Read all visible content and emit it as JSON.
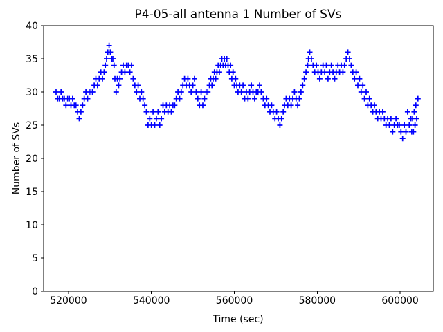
{
  "figure": {
    "background": "#ffffff"
  },
  "chart_data": {
    "type": "scatter",
    "title": "P4-05-all antenna 1 Number of SVs",
    "xlabel": "Time (sec)",
    "ylabel": "Number of SVs",
    "xlim": [
      514000,
      608000
    ],
    "ylim": [
      0,
      40
    ],
    "xticks": [
      520000,
      540000,
      560000,
      580000,
      600000
    ],
    "yticks": [
      0,
      5,
      10,
      15,
      20,
      25,
      30,
      35,
      40
    ],
    "grid": false,
    "marker": "plus",
    "marker_color": "#0000ff",
    "axis_color": "#000000",
    "points": [
      [
        517000,
        30
      ],
      [
        517400,
        29
      ],
      [
        517800,
        29
      ],
      [
        518200,
        30
      ],
      [
        518600,
        29
      ],
      [
        519000,
        29
      ],
      [
        519400,
        28
      ],
      [
        519800,
        29
      ],
      [
        520200,
        29
      ],
      [
        520600,
        28
      ],
      [
        521000,
        29
      ],
      [
        521400,
        28
      ],
      [
        521800,
        28
      ],
      [
        522200,
        27
      ],
      [
        522600,
        26
      ],
      [
        523000,
        27
      ],
      [
        523400,
        28
      ],
      [
        523800,
        29
      ],
      [
        524200,
        30
      ],
      [
        524600,
        29
      ],
      [
        525000,
        30
      ],
      [
        525400,
        30
      ],
      [
        525800,
        30
      ],
      [
        526200,
        31
      ],
      [
        526600,
        32
      ],
      [
        527000,
        31
      ],
      [
        527400,
        32
      ],
      [
        527800,
        33
      ],
      [
        528200,
        32
      ],
      [
        528600,
        33
      ],
      [
        528900,
        34
      ],
      [
        529200,
        35
      ],
      [
        529500,
        36
      ],
      [
        529800,
        37
      ],
      [
        530100,
        36
      ],
      [
        530400,
        35
      ],
      [
        530700,
        35
      ],
      [
        531000,
        34
      ],
      [
        531200,
        32
      ],
      [
        531500,
        30
      ],
      [
        531800,
        32
      ],
      [
        532100,
        31
      ],
      [
        532400,
        32
      ],
      [
        532800,
        33
      ],
      [
        533200,
        34
      ],
      [
        533600,
        33
      ],
      [
        534000,
        34
      ],
      [
        534400,
        34
      ],
      [
        534800,
        33
      ],
      [
        535200,
        34
      ],
      [
        535600,
        32
      ],
      [
        536000,
        31
      ],
      [
        536400,
        30
      ],
      [
        536800,
        31
      ],
      [
        537200,
        29
      ],
      [
        537600,
        30
      ],
      [
        538000,
        29
      ],
      [
        538400,
        28
      ],
      [
        538800,
        27
      ],
      [
        539200,
        25
      ],
      [
        539600,
        26
      ],
      [
        540000,
        25
      ],
      [
        540400,
        27
      ],
      [
        540800,
        25
      ],
      [
        541200,
        26
      ],
      [
        541600,
        27
      ],
      [
        542000,
        25
      ],
      [
        542400,
        26
      ],
      [
        542800,
        28
      ],
      [
        543200,
        27
      ],
      [
        543600,
        28
      ],
      [
        544000,
        27
      ],
      [
        544400,
        28
      ],
      [
        544800,
        27
      ],
      [
        545200,
        28
      ],
      [
        545600,
        28
      ],
      [
        546000,
        29
      ],
      [
        546400,
        30
      ],
      [
        546800,
        29
      ],
      [
        547200,
        30
      ],
      [
        547600,
        31
      ],
      [
        548000,
        32
      ],
      [
        548400,
        31
      ],
      [
        548800,
        32
      ],
      [
        549200,
        31
      ],
      [
        549600,
        30
      ],
      [
        550000,
        31
      ],
      [
        550400,
        32
      ],
      [
        550800,
        30
      ],
      [
        551200,
        29
      ],
      [
        551600,
        28
      ],
      [
        552000,
        30
      ],
      [
        552400,
        28
      ],
      [
        552800,
        29
      ],
      [
        553200,
        30
      ],
      [
        553600,
        30
      ],
      [
        554000,
        31
      ],
      [
        554300,
        32
      ],
      [
        554600,
        31
      ],
      [
        554900,
        32
      ],
      [
        555200,
        33
      ],
      [
        555500,
        32
      ],
      [
        555800,
        33
      ],
      [
        556100,
        34
      ],
      [
        556400,
        33
      ],
      [
        556700,
        34
      ],
      [
        557000,
        35
      ],
      [
        557300,
        34
      ],
      [
        557600,
        35
      ],
      [
        557900,
        34
      ],
      [
        558200,
        35
      ],
      [
        558500,
        34
      ],
      [
        558800,
        33
      ],
      [
        559100,
        34
      ],
      [
        559400,
        32
      ],
      [
        559700,
        33
      ],
      [
        560000,
        31
      ],
      [
        560300,
        32
      ],
      [
        560600,
        31
      ],
      [
        560900,
        30
      ],
      [
        561300,
        31
      ],
      [
        561700,
        30
      ],
      [
        562100,
        31
      ],
      [
        562500,
        29
      ],
      [
        562900,
        30
      ],
      [
        563300,
        29
      ],
      [
        563700,
        30
      ],
      [
        564100,
        31
      ],
      [
        564500,
        30
      ],
      [
        564900,
        29
      ],
      [
        565300,
        30
      ],
      [
        565700,
        30
      ],
      [
        566100,
        31
      ],
      [
        566500,
        30
      ],
      [
        567000,
        29
      ],
      [
        567400,
        28
      ],
      [
        567800,
        29
      ],
      [
        568200,
        28
      ],
      [
        568600,
        27
      ],
      [
        569000,
        28
      ],
      [
        569400,
        27
      ],
      [
        569800,
        26
      ],
      [
        570200,
        27
      ],
      [
        570600,
        26
      ],
      [
        571000,
        25
      ],
      [
        571400,
        26
      ],
      [
        571800,
        27
      ],
      [
        572100,
        28
      ],
      [
        572500,
        29
      ],
      [
        572900,
        28
      ],
      [
        573300,
        29
      ],
      [
        573700,
        28
      ],
      [
        574100,
        29
      ],
      [
        574500,
        30
      ],
      [
        574900,
        29
      ],
      [
        575300,
        28
      ],
      [
        575700,
        29
      ],
      [
        576100,
        30
      ],
      [
        576500,
        31
      ],
      [
        576900,
        32
      ],
      [
        577300,
        33
      ],
      [
        577700,
        34
      ],
      [
        577900,
        35
      ],
      [
        578200,
        36
      ],
      [
        578600,
        35
      ],
      [
        579000,
        34
      ],
      [
        579400,
        33
      ],
      [
        579800,
        34
      ],
      [
        580200,
        33
      ],
      [
        580600,
        32
      ],
      [
        581000,
        33
      ],
      [
        581400,
        34
      ],
      [
        581800,
        33
      ],
      [
        582200,
        34
      ],
      [
        582600,
        32
      ],
      [
        583000,
        33
      ],
      [
        583400,
        34
      ],
      [
        583800,
        33
      ],
      [
        584200,
        32
      ],
      [
        584600,
        33
      ],
      [
        585000,
        34
      ],
      [
        585400,
        33
      ],
      [
        585800,
        34
      ],
      [
        586200,
        33
      ],
      [
        586600,
        34
      ],
      [
        587000,
        35
      ],
      [
        587400,
        36
      ],
      [
        587800,
        35
      ],
      [
        588200,
        34
      ],
      [
        588600,
        33
      ],
      [
        589000,
        32
      ],
      [
        589400,
        33
      ],
      [
        589800,
        31
      ],
      [
        590200,
        32
      ],
      [
        590600,
        30
      ],
      [
        591000,
        31
      ],
      [
        591400,
        29
      ],
      [
        591800,
        30
      ],
      [
        592200,
        28
      ],
      [
        592600,
        29
      ],
      [
        593000,
        28
      ],
      [
        593400,
        27
      ],
      [
        593800,
        28
      ],
      [
        594200,
        27
      ],
      [
        594600,
        26
      ],
      [
        595000,
        27
      ],
      [
        595400,
        26
      ],
      [
        595800,
        27
      ],
      [
        596200,
        26
      ],
      [
        596600,
        25
      ],
      [
        597000,
        26
      ],
      [
        597400,
        25
      ],
      [
        597800,
        26
      ],
      [
        598200,
        24
      ],
      [
        598600,
        25
      ],
      [
        599000,
        26
      ],
      [
        599400,
        25
      ],
      [
        599800,
        25
      ],
      [
        600200,
        24
      ],
      [
        600600,
        23
      ],
      [
        601000,
        25
      ],
      [
        601400,
        24
      ],
      [
        601800,
        27
      ],
      [
        602200,
        25
      ],
      [
        602600,
        26
      ],
      [
        602800,
        24
      ],
      [
        603000,
        26
      ],
      [
        603200,
        24
      ],
      [
        603400,
        27
      ],
      [
        603600,
        25
      ],
      [
        603800,
        28
      ],
      [
        604000,
        26
      ],
      [
        604300,
        29
      ]
    ]
  }
}
